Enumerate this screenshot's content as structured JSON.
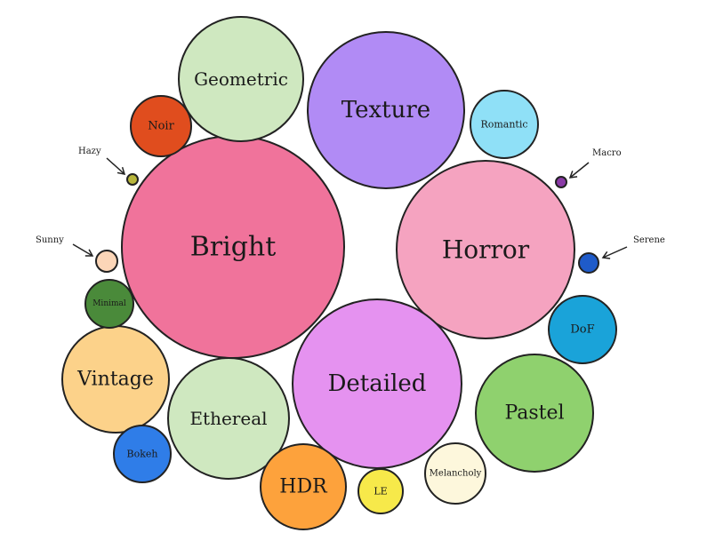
{
  "chart_data": {
    "type": "bubble",
    "title": "",
    "bubbles": [
      {
        "label": "Bright",
        "color": "#f0739b"
      },
      {
        "label": "Horror",
        "color": "#f5a3c0"
      },
      {
        "label": "Detailed",
        "color": "#e592f0"
      },
      {
        "label": "Texture",
        "color": "#b18bf5"
      },
      {
        "label": "Geometric",
        "color": "#cfe8c0"
      },
      {
        "label": "Ethereal",
        "color": "#cfe8c0"
      },
      {
        "label": "Pastel",
        "color": "#8fd16e"
      },
      {
        "label": "Vintage",
        "color": "#fcd28a"
      },
      {
        "label": "HDR",
        "color": "#fda23c"
      },
      {
        "label": "DoF",
        "color": "#1aa3d9"
      },
      {
        "label": "Romantic",
        "color": "#8fe0f7"
      },
      {
        "label": "Melancholy",
        "color": "#fdf7dc"
      },
      {
        "label": "Noir",
        "color": "#e04d1e"
      },
      {
        "label": "Minimal",
        "color": "#4a8a3a"
      },
      {
        "label": "Bokeh",
        "color": "#2f7de8"
      },
      {
        "label": "LE",
        "color": "#f7e94a"
      },
      {
        "label": "Serene",
        "color": "#1f5bc9",
        "callout": true
      },
      {
        "label": "Sunny",
        "color": "#fcd6b8",
        "callout": true
      },
      {
        "label": "Hazy",
        "color": "#b8b63c",
        "callout": true
      },
      {
        "label": "Macro",
        "color": "#8a3aa6",
        "callout": true
      }
    ]
  }
}
